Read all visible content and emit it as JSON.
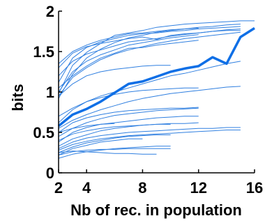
{
  "chart_data": {
    "type": "line",
    "title": "",
    "xlabel": "Nb of rec. in population",
    "ylabel": "bits",
    "xlim": [
      2,
      16
    ],
    "ylim": [
      0,
      2
    ],
    "xticks": [
      2,
      4,
      8,
      12,
      16
    ],
    "yticks": [
      0,
      0.5,
      1,
      1.5,
      2
    ],
    "xtick_labels": [
      "2",
      "4",
      "8",
      "12",
      "16"
    ],
    "ytick_labels": [
      "0",
      "0.5",
      "1",
      "1.5",
      "2"
    ],
    "grid": false,
    "colors": {
      "series": "#2f7fe0",
      "mean": "#0f6fe6",
      "axis": "#000000"
    },
    "mean_series": {
      "x": [
        2,
        3,
        4,
        5,
        6,
        7,
        8,
        9,
        10,
        11,
        12,
        13,
        14,
        15,
        16
      ],
      "values": [
        0.58,
        0.72,
        0.79,
        0.88,
        0.99,
        1.1,
        1.13,
        1.19,
        1.25,
        1.29,
        1.32,
        1.43,
        1.35,
        1.68,
        1.79
      ]
    },
    "series": [
      {
        "x": [
          2,
          3,
          4,
          5,
          6,
          7,
          8,
          9,
          10,
          11,
          12,
          13,
          14,
          15,
          16
        ],
        "values": [
          0.98,
          1.33,
          1.49,
          1.6,
          1.7,
          1.73,
          1.76,
          1.8,
          1.82,
          1.84,
          1.85,
          1.86,
          1.87,
          1.88,
          1.88
        ]
      },
      {
        "x": [
          2,
          3,
          4,
          5,
          6,
          7,
          8,
          9,
          10,
          11,
          12,
          13,
          14,
          15
        ],
        "values": [
          0.92,
          1.22,
          1.42,
          1.53,
          1.61,
          1.67,
          1.7,
          1.74,
          1.76,
          1.78,
          1.8,
          1.81,
          1.83,
          1.84
        ]
      },
      {
        "x": [
          2,
          3,
          4,
          5,
          6,
          7,
          8,
          9,
          10,
          11,
          12,
          13,
          14,
          15
        ],
        "values": [
          1.12,
          1.42,
          1.55,
          1.62,
          1.66,
          1.7,
          1.72,
          1.73,
          1.75,
          1.76,
          1.78,
          1.79,
          1.8,
          1.81
        ]
      },
      {
        "x": [
          2,
          3,
          4,
          5,
          6,
          7,
          8,
          9,
          10,
          11,
          12
        ],
        "values": [
          1.35,
          1.5,
          1.58,
          1.64,
          1.68,
          1.72,
          1.73,
          1.75,
          1.77,
          1.78,
          1.79
        ]
      },
      {
        "x": [
          2,
          3,
          4,
          5,
          6,
          7,
          8,
          9,
          10,
          11,
          12,
          13,
          14,
          15
        ],
        "values": [
          1.2,
          1.38,
          1.47,
          1.52,
          1.57,
          1.62,
          1.64,
          1.66,
          1.69,
          1.71,
          1.73,
          1.75,
          1.77,
          1.78
        ]
      },
      {
        "x": [
          2,
          3,
          4,
          5,
          6,
          7,
          8,
          9,
          10,
          11,
          12
        ],
        "values": [
          1.0,
          1.25,
          1.38,
          1.46,
          1.52,
          1.58,
          1.61,
          1.64,
          1.67,
          1.69,
          1.71
        ]
      },
      {
        "x": [
          2,
          3,
          4,
          5,
          6,
          7,
          8,
          9,
          10,
          11,
          12,
          13,
          14,
          15
        ],
        "values": [
          0.95,
          1.18,
          1.3,
          1.4,
          1.47,
          1.52,
          1.56,
          1.6,
          1.63,
          1.66,
          1.68,
          1.7,
          1.72,
          1.74
        ]
      },
      {
        "x": [
          2,
          3,
          4,
          5,
          6,
          7,
          8,
          9,
          10,
          11,
          12
        ],
        "values": [
          1.05,
          1.2,
          1.32,
          1.42,
          1.48,
          1.54,
          1.55,
          1.58,
          1.6,
          1.62,
          1.64
        ]
      },
      {
        "x": [
          2,
          3,
          4,
          5,
          6,
          7,
          8,
          9,
          10,
          11,
          12,
          13,
          14,
          15
        ],
        "values": [
          1.3,
          1.48,
          1.56,
          1.6,
          1.63,
          1.66,
          1.68,
          1.65,
          1.7,
          1.72,
          1.73,
          1.75,
          1.76,
          1.76
        ]
      },
      {
        "x": [
          2,
          3,
          4,
          5,
          6,
          7,
          8,
          9,
          10
        ],
        "values": [
          0.95,
          1.1,
          1.2,
          1.25,
          1.28,
          1.3,
          1.32,
          1.33,
          1.33
        ]
      },
      {
        "x": [
          2,
          3,
          4,
          5,
          6,
          7,
          8,
          9,
          10,
          11,
          12,
          13,
          14,
          15
        ],
        "values": [
          0.7,
          0.8,
          0.88,
          0.95,
          1.0,
          1.05,
          1.1,
          1.15,
          1.2,
          1.23,
          1.27,
          1.31,
          1.35,
          1.38
        ]
      },
      {
        "x": [
          2,
          3,
          4,
          5,
          6,
          7,
          8,
          9,
          10,
          11,
          12,
          13,
          14,
          15
        ],
        "values": [
          0.55,
          0.65,
          0.72,
          0.78,
          0.83,
          0.88,
          0.92,
          0.95,
          0.98,
          1.0,
          1.02,
          1.04,
          1.06,
          1.07
        ]
      },
      {
        "x": [
          2,
          3,
          4,
          5,
          6,
          7,
          8,
          9,
          10,
          11,
          12
        ],
        "values": [
          0.62,
          0.78,
          0.88,
          0.93,
          0.97,
          1.0,
          1.02,
          1.03,
          1.04,
          1.05,
          1.05
        ]
      },
      {
        "x": [
          2,
          3,
          4,
          5,
          6,
          7,
          8,
          9,
          10,
          11,
          12
        ],
        "values": [
          0.5,
          0.62,
          0.68,
          0.72,
          0.75,
          0.77,
          0.78,
          0.79,
          0.8,
          0.8,
          0.81
        ]
      },
      {
        "x": [
          2,
          3,
          4,
          5,
          6,
          7,
          8,
          9,
          10,
          11,
          12
        ],
        "values": [
          0.45,
          0.55,
          0.62,
          0.67,
          0.71,
          0.73,
          0.75,
          0.77,
          0.78,
          0.79,
          0.8
        ]
      },
      {
        "x": [
          2,
          3,
          4,
          5,
          6,
          7,
          8,
          9,
          10,
          11,
          12
        ],
        "values": [
          0.38,
          0.5,
          0.56,
          0.6,
          0.62,
          0.64,
          0.66,
          0.68,
          0.69,
          0.7,
          0.7
        ]
      },
      {
        "x": [
          2,
          3,
          4,
          5,
          6,
          7,
          8,
          9,
          10,
          11,
          12
        ],
        "values": [
          0.4,
          0.48,
          0.52,
          0.55,
          0.57,
          0.58,
          0.59,
          0.6,
          0.61,
          0.61,
          0.62
        ]
      },
      {
        "x": [
          2,
          3,
          4,
          5,
          6,
          7,
          8,
          9,
          10,
          11,
          12,
          13,
          14,
          15
        ],
        "values": [
          0.3,
          0.38,
          0.43,
          0.46,
          0.48,
          0.5,
          0.51,
          0.52,
          0.53,
          0.54,
          0.55,
          0.55,
          0.56,
          0.56
        ]
      },
      {
        "x": [
          2,
          3,
          4,
          5,
          6,
          7,
          8,
          9,
          10,
          11,
          12,
          13,
          14,
          15
        ],
        "values": [
          0.28,
          0.35,
          0.39,
          0.42,
          0.44,
          0.46,
          0.47,
          0.48,
          0.49,
          0.5,
          0.51,
          0.52,
          0.53,
          0.53
        ]
      },
      {
        "x": [
          2,
          3,
          4,
          5,
          6,
          7,
          8,
          9,
          10
        ],
        "values": [
          0.33,
          0.42,
          0.47,
          0.52,
          0.55,
          0.57,
          0.59,
          0.6,
          0.6
        ]
      },
      {
        "x": [
          2,
          3,
          4,
          5,
          6,
          7,
          8,
          9,
          10
        ],
        "values": [
          0.25,
          0.32,
          0.37,
          0.4,
          0.43,
          0.45,
          0.46,
          0.47,
          0.47
        ]
      },
      {
        "x": [
          2,
          3,
          4,
          5,
          6,
          7,
          8
        ],
        "values": [
          0.22,
          0.3,
          0.34,
          0.38,
          0.4,
          0.42,
          0.42
        ]
      },
      {
        "x": [
          2,
          3,
          4,
          5,
          6,
          7,
          8,
          9,
          10
        ],
        "values": [
          0.18,
          0.23,
          0.26,
          0.28,
          0.3,
          0.31,
          0.32,
          0.33,
          0.33
        ]
      },
      {
        "x": [
          2,
          3,
          4,
          5,
          6,
          7,
          8,
          9,
          10
        ],
        "values": [
          0.22,
          0.26,
          0.28,
          0.29,
          0.29,
          0.3,
          0.3,
          0.3,
          0.3
        ]
      },
      {
        "x": [
          2,
          3,
          4,
          5,
          6,
          7,
          8,
          9
        ],
        "values": [
          0.25,
          0.27,
          0.26,
          0.25,
          0.24,
          0.24,
          0.23,
          0.23
        ]
      },
      {
        "x": [
          2,
          3,
          4,
          5,
          6
        ],
        "values": [
          0.5,
          0.55,
          0.58,
          0.6,
          0.61
        ]
      }
    ]
  }
}
